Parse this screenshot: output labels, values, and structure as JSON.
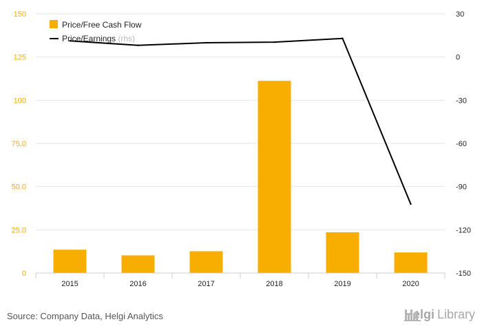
{
  "chart_data": {
    "type": "bar",
    "categories": [
      "2015",
      "2016",
      "2017",
      "2018",
      "2019",
      "2020"
    ],
    "series": [
      {
        "name": "Price/Free Cash Flow",
        "type": "bar",
        "axis": "left",
        "values": [
          13.5,
          10.2,
          12.6,
          111.2,
          23.6,
          11.9
        ]
      },
      {
        "name": "Price/Earnings",
        "name_suffix": "(rhs)",
        "type": "line",
        "axis": "right",
        "values": [
          11.2,
          8.1,
          9.9,
          10.3,
          12.9,
          -102.1
        ]
      }
    ],
    "left_axis": {
      "ticks": [
        "0",
        "25.0",
        "50.0",
        "75.0",
        "100",
        "125",
        "150"
      ],
      "min": 0,
      "max": 150
    },
    "right_axis": {
      "ticks": [
        "-150",
        "-120",
        "-90",
        "-60",
        "-30",
        "0",
        "30"
      ],
      "min": -150,
      "max": 30
    },
    "grid": true,
    "legend_position": "top-left",
    "colors": {
      "bar": "#f7ae00",
      "line": "#000000",
      "left_axis_text": "#f7ae00",
      "grid": "#e6e6e6"
    }
  },
  "footer": {
    "source": "Source: Company Data, Helgi Analytics"
  },
  "brand": {
    "name_part1": "Helgi",
    "name_part2": "Library"
  }
}
